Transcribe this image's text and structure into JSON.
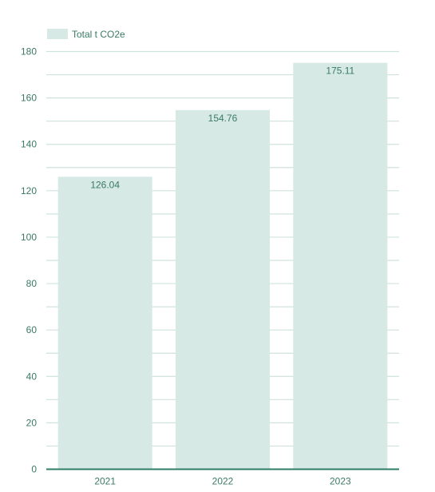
{
  "chart_data": {
    "type": "bar",
    "categories": [
      "2021",
      "2022",
      "2023"
    ],
    "series": [
      {
        "name": "Total t CO2e",
        "values": [
          126.04,
          154.76,
          175.11
        ]
      }
    ],
    "data_labels": [
      "126.04",
      "154.76",
      "175.11"
    ],
    "ylim": [
      0,
      180
    ],
    "y_ticks": [
      0,
      20,
      40,
      60,
      80,
      100,
      120,
      140,
      160,
      180
    ],
    "grid": true,
    "legend": "top-left",
    "title": "",
    "xlabel": "",
    "ylabel": ""
  },
  "colors": {
    "bar": "#d6e9e4",
    "grid": "#cfe3dd",
    "axis": "#2f7d66",
    "text": "#3a7a66"
  }
}
